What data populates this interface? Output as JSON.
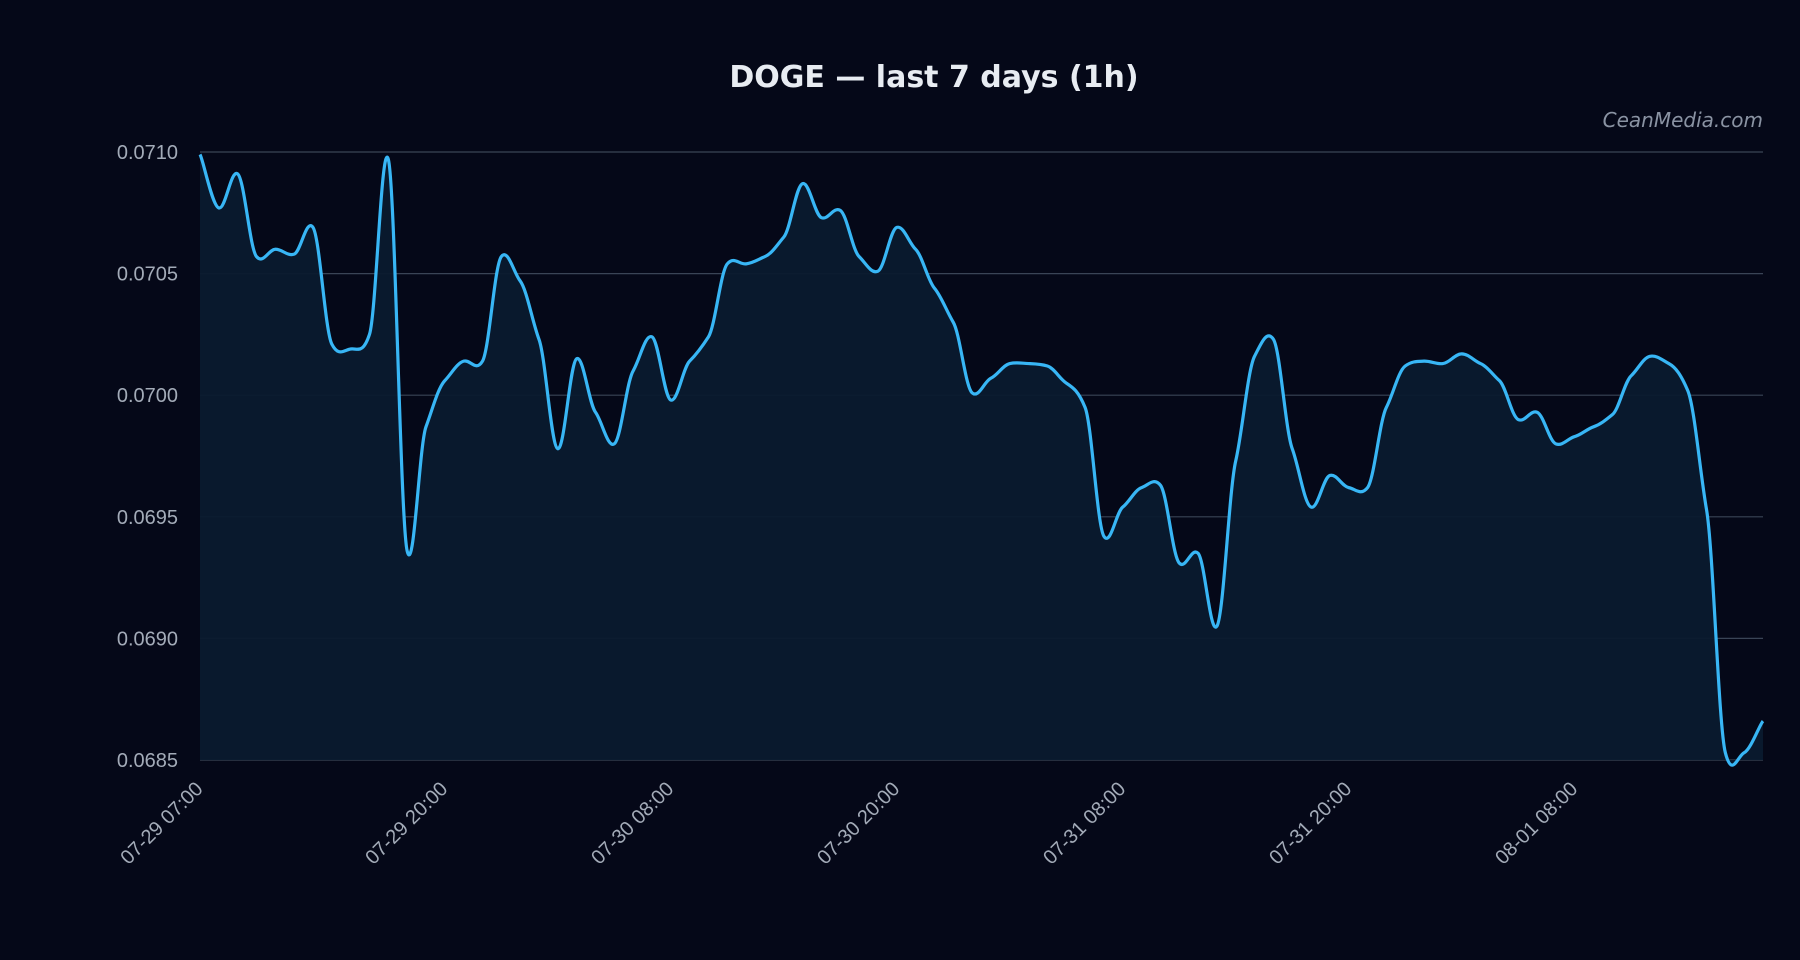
{
  "chart_data": {
    "type": "line",
    "title": "DOGE — last 7 days (1h)",
    "watermark": "CeanMedia.com",
    "xlabel": "",
    "ylabel": "",
    "ylim": [
      0.0685,
      0.071
    ],
    "yticks": [
      "0.0685",
      "0.0690",
      "0.0695",
      "0.0700",
      "0.0705",
      "0.0710"
    ],
    "ytick_values": [
      0.0685,
      0.069,
      0.0695,
      0.07,
      0.0705,
      0.071
    ],
    "xticks": [
      {
        "label": "07-29 07:00",
        "x": 0
      },
      {
        "label": "07-29 20:00",
        "x": 13
      },
      {
        "label": "07-30 08:00",
        "x": 25
      },
      {
        "label": "07-30 20:00",
        "x": 37
      },
      {
        "label": "07-31 08:00",
        "x": 49
      },
      {
        "label": "07-31 20:00",
        "x": 61
      },
      {
        "label": "08-01 08:00",
        "x": 73
      }
    ],
    "x_range": [
      0,
      83
    ],
    "grid": true,
    "legend": "none",
    "colors": {
      "line": "#38b6f5",
      "fill": "#0a1a2e",
      "background": "#050818"
    },
    "series": [
      {
        "values": [
          0.07099,
          0.07077,
          0.07091,
          0.07057,
          0.0706,
          0.07058,
          0.07069,
          0.07021,
          0.07019,
          0.07025,
          0.07097,
          0.06936,
          0.06987,
          0.07006,
          0.07014,
          0.07014,
          0.07057,
          0.07047,
          0.07023,
          0.06978,
          0.07015,
          0.06993,
          0.0698,
          0.0701,
          0.07024,
          0.06998,
          0.07014,
          0.07024,
          0.07054,
          0.07054,
          0.07057,
          0.07065,
          0.07087,
          0.07073,
          0.07076,
          0.07057,
          0.07051,
          0.07069,
          0.0706,
          0.07044,
          0.0703,
          0.07001,
          0.07007,
          0.07013,
          0.07013,
          0.07012,
          0.07005,
          0.06995,
          0.06942,
          0.06954,
          0.06962,
          0.06963,
          0.06931,
          0.06935,
          0.06905,
          0.06973,
          0.07016,
          0.07023,
          0.06978,
          0.06954,
          0.06967,
          0.06962,
          0.06962,
          0.06995,
          0.07012,
          0.07014,
          0.07013,
          0.07017,
          0.07013,
          0.07006,
          0.0699,
          0.06993,
          0.0698,
          0.06983,
          0.06987,
          0.06992,
          0.07008,
          0.07016,
          0.07013,
          0.07002,
          0.06953,
          0.06853,
          0.06853,
          0.06866
        ]
      }
    ]
  }
}
